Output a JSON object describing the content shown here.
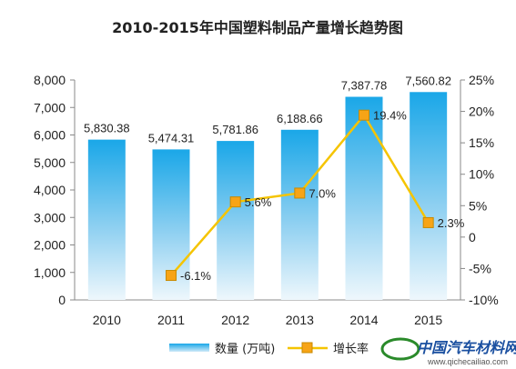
{
  "chart_data": {
    "type": "bar",
    "title": "2010-2015年中国塑料制品产量增长趋势图",
    "categories": [
      "2010",
      "2011",
      "2012",
      "2013",
      "2014",
      "2015"
    ],
    "series": [
      {
        "name": "数量 (万吨)",
        "type": "bar",
        "axis": "left",
        "values": [
          5830.38,
          5474.31,
          5781.86,
          6188.66,
          7387.78,
          7560.82
        ],
        "labels": [
          "5,830.38",
          "5,474.31",
          "5,781.86",
          "6,188.66",
          "7,387.78",
          "7,560.82"
        ]
      },
      {
        "name": "增长率",
        "type": "line",
        "axis": "right",
        "values": [
          null,
          -6.1,
          5.6,
          7.0,
          19.4,
          2.3
        ],
        "labels": [
          "",
          "-6.1%",
          "5.6%",
          "7.0%",
          "19.4%",
          "2.3%"
        ]
      }
    ],
    "y_left": {
      "min": 0,
      "max": 8000,
      "ticks": [
        "0",
        "1,000",
        "2,000",
        "3,000",
        "4,000",
        "5,000",
        "6,000",
        "7,000",
        "8,000"
      ]
    },
    "y_right": {
      "min": -10,
      "max": 25,
      "ticks": [
        "-10%",
        "-5%",
        "0",
        "5%",
        "10%",
        "15%",
        "20%",
        "25%"
      ]
    },
    "legend_position": "bottom",
    "grid": false,
    "colors": {
      "bar_top": "#1aa7e8",
      "bar_bottom": "#e6f3fb",
      "line": "#f5c400",
      "marker_fill": "#f7a416",
      "marker_stroke": "#c88a00"
    }
  },
  "watermark": {
    "text": "中国汽车材料网",
    "url": "www.qichecailiao.com"
  }
}
